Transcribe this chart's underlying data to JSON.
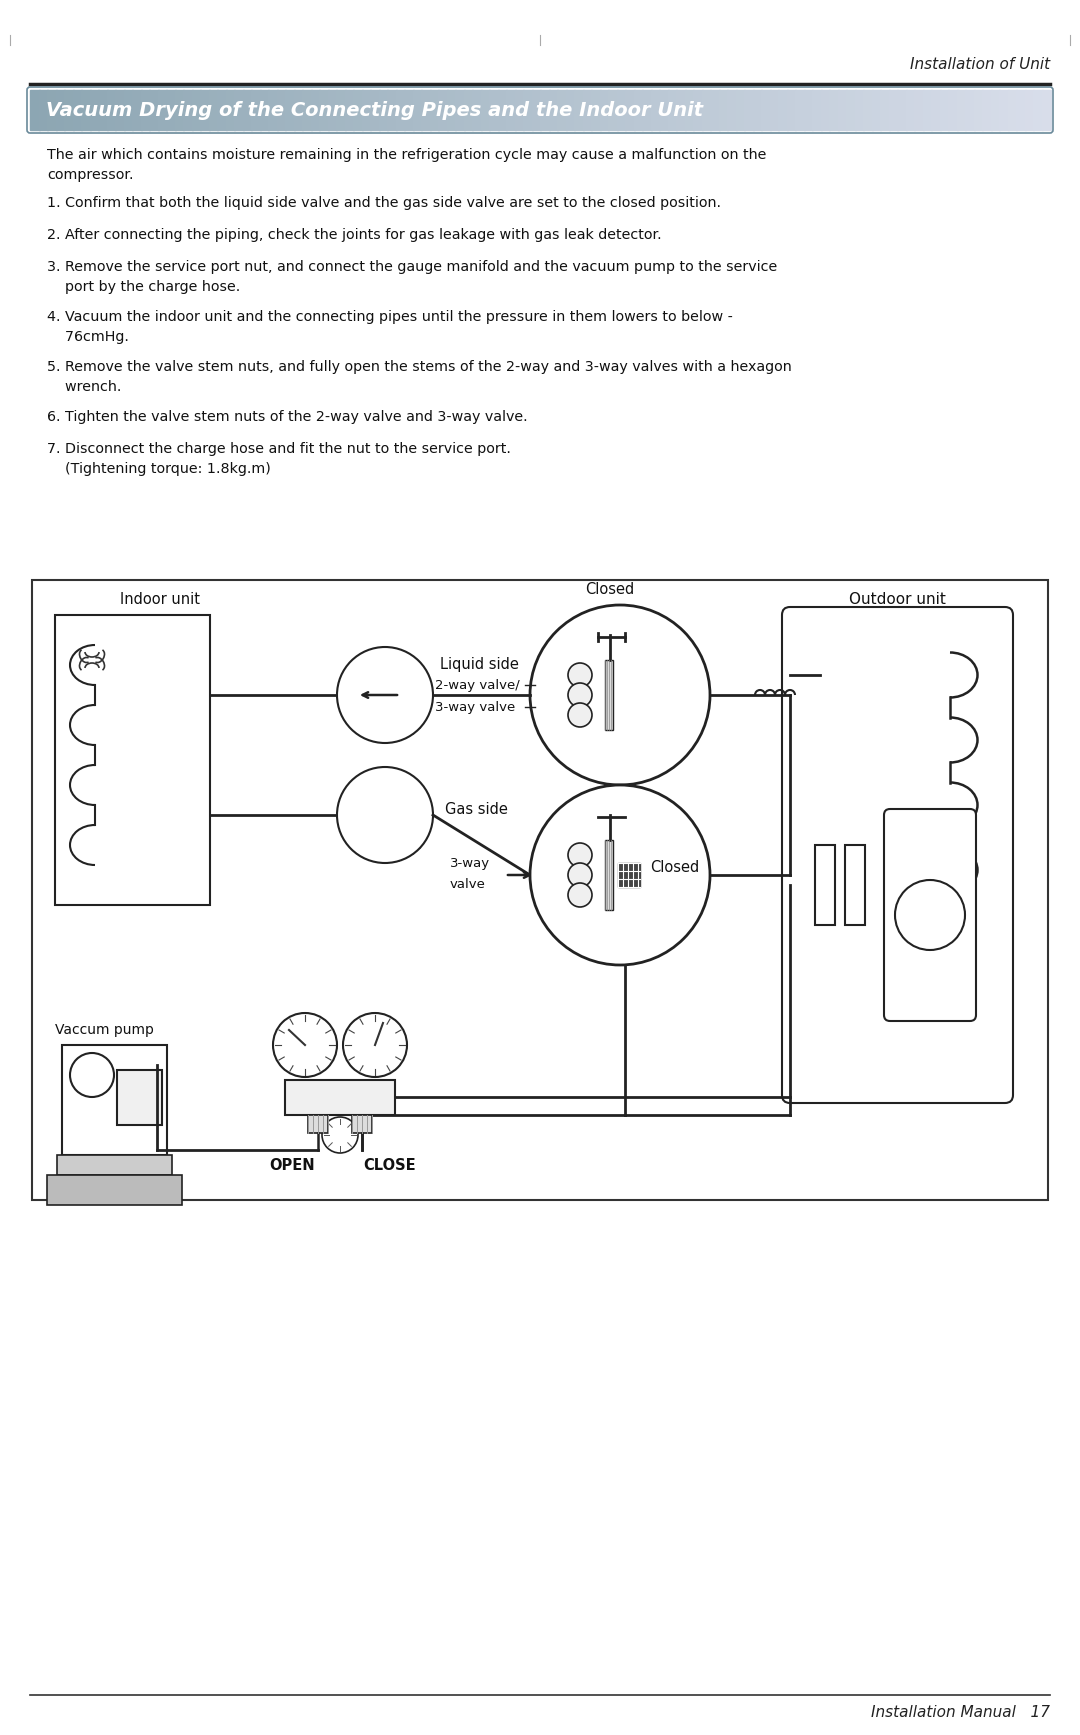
{
  "page_header": "Installation of Unit",
  "section_title": "Vacuum Drying of the Connecting Pipes and the Indoor Unit",
  "intro_text": "The air which contains moisture remaining in the refrigeration cycle may cause a malfunction on the\ncompressor.",
  "steps": [
    "1. Confirm that both the liquid side valve and the gas side valve are set to the closed position.",
    "2. After connecting the piping, check the joints for gas leakage with gas leak detector.",
    "3. Remove the service port nut, and connect the gauge manifold and the vacuum pump to the service\n    port by the charge hose.",
    "4. Vacuum the indoor unit and the connecting pipes until the pressure in them lowers to below -\n    76cmHg.",
    "5. Remove the valve stem nuts, and fully open the stems of the 2-way and 3-way valves with a hexagon\n    wrench.",
    "6. Tighten the valve stem nuts of the 2-way valve and 3-way valve.",
    "7. Disconnect the charge hose and fit the nut to the service port.\n    (Tightening torque: 1.8kg.m)"
  ],
  "footer_text": "Installation Manual   17",
  "bg_color": "#ffffff",
  "body_text_color": "#111111"
}
